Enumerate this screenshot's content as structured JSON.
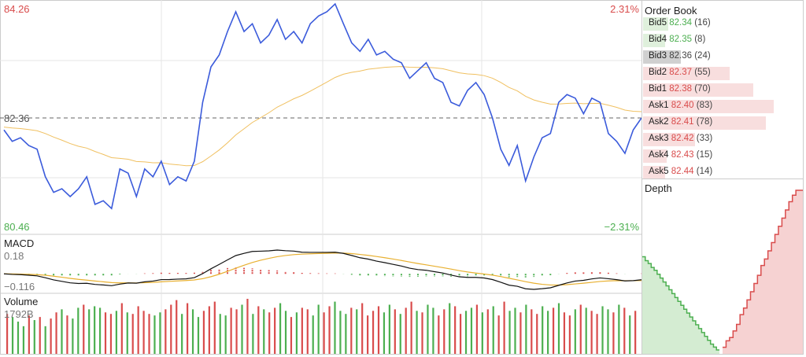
{
  "main": {
    "high_label": "84.26",
    "low_label": "80.46",
    "high_pct": "2.31%",
    "low_pct": "−2.31%",
    "ref_label": "82.36",
    "ref_price": 82.36,
    "ymax": 84.26,
    "ymin": 80.46
  },
  "macd": {
    "title": "MACD",
    "max_label": "0.18",
    "min_label": "−0.116"
  },
  "volume": {
    "title": "Volume",
    "max_label": "1792B"
  },
  "colors": {
    "price": "#3b5bdb",
    "ma": "#f0c060",
    "up": "#d94c4c",
    "down": "#4caf50",
    "grid": "#e5e5e5"
  },
  "prices": [
    82.16,
    81.97,
    82.03,
    81.9,
    81.84,
    81.38,
    81.12,
    81.18,
    81.05,
    81.18,
    81.38,
    80.92,
    80.98,
    80.85,
    81.51,
    81.44,
    81.05,
    81.51,
    81.38,
    81.64,
    81.25,
    81.38,
    81.31,
    81.64,
    82.62,
    83.21,
    83.41,
    83.8,
    84.13,
    83.8,
    83.93,
    83.61,
    83.74,
    84.0,
    83.67,
    83.8,
    83.61,
    83.93,
    84.06,
    84.13,
    84.26,
    83.93,
    83.61,
    83.47,
    83.67,
    83.41,
    83.47,
    83.34,
    83.28,
    83.02,
    83.15,
    83.28,
    83.02,
    82.95,
    82.62,
    82.56,
    82.82,
    82.95,
    82.75,
    82.36,
    81.84,
    81.57,
    81.9,
    81.31,
    81.71,
    82.03,
    82.1,
    82.62,
    82.75,
    82.69,
    82.43,
    82.69,
    82.62,
    82.1,
    81.97,
    81.77,
    82.16,
    82.36
  ],
  "volumes": [
    1300,
    1200,
    1050,
    900,
    1250,
    1100,
    1200,
    900,
    1150,
    1350,
    1450,
    1250,
    1150,
    1500,
    1600,
    1450,
    1550,
    1500,
    1350,
    1300,
    1400,
    1650,
    1350,
    1300,
    1550,
    1400,
    1300,
    1250,
    1350,
    1450,
    1600,
    1750,
    1300,
    1650,
    1450,
    1200,
    1400,
    1550,
    1700,
    1300,
    1250,
    1500,
    1450,
    1600,
    1792,
    1300,
    1550,
    1450,
    1350,
    1500,
    1650,
    1400,
    1200,
    1350,
    1500,
    1450,
    1250,
    1600,
    1350,
    1550,
    1700,
    1400,
    1300,
    1500,
    1450,
    1650,
    1250,
    1400,
    1550,
    1350,
    1600,
    1450,
    1300,
    1500,
    1700,
    1400,
    1350,
    1600,
    1500,
    1250,
    1450,
    1650,
    1550,
    1300,
    1400,
    1500,
    1600,
    1350,
    1450,
    1550,
    1250,
    1700,
    1400,
    1500,
    1350,
    1600,
    1450,
    1300,
    1550,
    1400,
    1500,
    1650,
    1350,
    1250,
    1450,
    1600,
    1500,
    1400,
    1300,
    1550,
    1450,
    1350,
    1600,
    1500,
    1250,
    1400
  ],
  "volume_up": [
    1,
    0,
    0,
    0,
    1,
    0,
    1,
    0,
    1,
    1,
    0,
    1,
    0,
    0,
    1,
    0,
    0,
    0,
    1,
    1,
    0,
    1,
    0,
    1,
    1,
    1,
    1,
    0,
    0,
    1,
    1,
    1,
    0,
    1,
    0,
    0,
    1,
    1,
    1,
    0,
    0,
    1,
    1,
    0,
    1,
    0,
    1,
    0,
    1,
    1,
    0,
    0,
    1,
    0,
    1,
    1,
    0,
    0,
    1,
    1,
    0,
    0,
    0,
    1,
    0,
    1,
    1,
    1,
    1,
    0,
    0,
    1,
    0,
    1,
    1,
    0,
    1,
    0,
    0,
    1,
    1,
    0,
    1,
    1,
    0,
    0,
    1,
    0,
    1,
    0,
    1,
    1,
    0,
    0,
    1,
    0,
    1,
    1,
    0,
    0,
    1,
    0,
    1,
    1,
    0,
    1,
    0,
    1,
    1,
    0,
    0,
    1,
    0,
    1,
    0,
    1
  ],
  "order_book": {
    "title": "Order Book",
    "rows": [
      {
        "label": "Bid5",
        "price": "82.34",
        "qty": "(16)",
        "size": 16,
        "kind": "bid"
      },
      {
        "label": "Bid4",
        "price": "82.35",
        "qty": "(8)",
        "size": 8,
        "kind": "bid"
      },
      {
        "label": "Bid3",
        "price": "82.36",
        "qty": "(24)",
        "size": 24,
        "kind": "mid"
      },
      {
        "label": "Bid2",
        "price": "82.37",
        "qty": "(55)",
        "size": 55,
        "kind": "ask"
      },
      {
        "label": "Bid1",
        "price": "82.38",
        "qty": "(70)",
        "size": 70,
        "kind": "ask"
      },
      {
        "label": "Ask1",
        "price": "82.40",
        "qty": "(83)",
        "size": 83,
        "kind": "ask"
      },
      {
        "label": "Ask2",
        "price": "82.41",
        "qty": "(78)",
        "size": 78,
        "kind": "ask"
      },
      {
        "label": "Ask3",
        "price": "82.42",
        "qty": "(33)",
        "size": 33,
        "kind": "ask"
      },
      {
        "label": "Ask4",
        "price": "82.43",
        "qty": "(15)",
        "size": 15,
        "kind": "ask"
      },
      {
        "label": "Ask5",
        "price": "82.44",
        "qty": "(14)",
        "size": 14,
        "kind": "ask"
      }
    ]
  },
  "depth": {
    "title": "Depth",
    "bids": [
      100,
      96,
      93,
      89,
      86,
      82,
      78,
      74,
      70,
      66,
      62,
      58,
      54,
      50,
      46,
      42,
      38,
      34,
      30,
      26,
      22,
      18,
      14,
      10,
      7,
      4
    ],
    "asks": [
      4,
      8,
      10,
      14,
      18,
      24,
      28,
      33,
      38,
      43,
      48,
      54,
      58,
      63,
      68,
      73,
      78,
      83,
      88,
      93,
      97,
      100,
      100
    ]
  }
}
